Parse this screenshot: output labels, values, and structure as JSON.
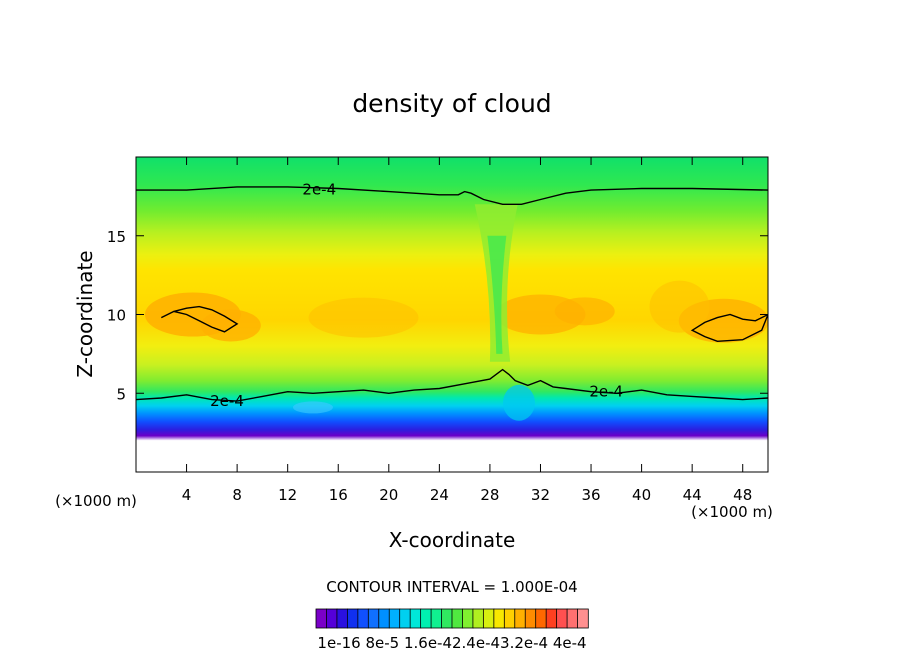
{
  "chart_data": {
    "type": "heatmap",
    "title": "density of cloud",
    "xlabel": "X-coordinate",
    "ylabel": "Z-coordinate",
    "x_unit": "(×1000 m)",
    "x_unit_right": "(×1000 m)",
    "xlim": [
      0,
      50
    ],
    "ylim": [
      0,
      20
    ],
    "x_ticks": [
      "4",
      "8",
      "12",
      "16",
      "20",
      "24",
      "28",
      "32",
      "36",
      "40",
      "44",
      "48"
    ],
    "x_tick_values": [
      4,
      8,
      12,
      16,
      20,
      24,
      28,
      32,
      36,
      40,
      44,
      48
    ],
    "y_ticks": [
      "5",
      "10",
      "15"
    ],
    "y_tick_values": [
      5,
      10,
      15
    ],
    "contour_label": "2e-4",
    "contour_interval_text": "CONTOUR INTERVAL = 1.000E-04",
    "colorbar": {
      "labels": [
        "1e-16",
        "8e-5",
        "1.6e-4",
        "2.4e-4",
        "3.2e-4",
        "4e-4"
      ],
      "label_text": "1e-16 8e-5 1.6e-42.4e-43.2e-4 4e-4",
      "colors": [
        "#7a00c8",
        "#5500d8",
        "#2a10e0",
        "#1030f0",
        "#1050ff",
        "#1070ff",
        "#0090ff",
        "#00b0ff",
        "#00d0f0",
        "#00e8d8",
        "#00f0b0",
        "#10f090",
        "#30e860",
        "#50e840",
        "#80f030",
        "#b0f020",
        "#d8f010",
        "#f8e800",
        "#ffd000",
        "#ffb000",
        "#ff8c00",
        "#ff6800",
        "#ff4020",
        "#ff5050",
        "#ff7070",
        "#ff9090"
      ]
    },
    "contours": [
      {
        "level": "2e-4",
        "points": [
          [
            0,
            17.9
          ],
          [
            4,
            17.9
          ],
          [
            8,
            18.1
          ],
          [
            12,
            18.1
          ],
          [
            16,
            18.0
          ],
          [
            20,
            17.8
          ],
          [
            22,
            17.7
          ],
          [
            24,
            17.6
          ],
          [
            25.5,
            17.6
          ],
          [
            26,
            17.8
          ],
          [
            26.5,
            17.7
          ],
          [
            27.5,
            17.3
          ],
          [
            29,
            17.0
          ],
          [
            30.5,
            17.0
          ],
          [
            32,
            17.3
          ],
          [
            34,
            17.7
          ],
          [
            36,
            17.9
          ],
          [
            40,
            18.0
          ],
          [
            44,
            18.0
          ],
          [
            50,
            17.9
          ]
        ]
      },
      {
        "level": "2e-4",
        "points": [
          [
            0,
            4.6
          ],
          [
            2,
            4.7
          ],
          [
            4,
            4.9
          ],
          [
            6,
            4.6
          ],
          [
            8,
            4.5
          ],
          [
            10,
            4.8
          ],
          [
            12,
            5.1
          ],
          [
            14,
            5.0
          ],
          [
            16,
            5.1
          ],
          [
            18,
            5.2
          ],
          [
            20,
            5.0
          ],
          [
            22,
            5.2
          ],
          [
            24,
            5.3
          ],
          [
            26,
            5.6
          ],
          [
            28,
            5.9
          ],
          [
            29,
            6.5
          ],
          [
            29.5,
            6.2
          ],
          [
            30,
            5.8
          ],
          [
            31,
            5.5
          ],
          [
            32,
            5.8
          ],
          [
            33,
            5.4
          ],
          [
            34,
            5.3
          ],
          [
            36,
            5.1
          ],
          [
            38,
            5.0
          ],
          [
            40,
            5.2
          ],
          [
            42,
            4.9
          ],
          [
            44,
            4.8
          ],
          [
            46,
            4.7
          ],
          [
            48,
            4.6
          ],
          [
            50,
            4.7
          ]
        ]
      },
      {
        "level": "3e-4",
        "points": [
          [
            2,
            9.8
          ],
          [
            3,
            10.2
          ],
          [
            4,
            10.0
          ],
          [
            5,
            9.6
          ],
          [
            6,
            9.2
          ],
          [
            7,
            8.9
          ],
          [
            8,
            9.4
          ],
          [
            7,
            9.9
          ],
          [
            6,
            10.3
          ],
          [
            5,
            10.5
          ],
          [
            4,
            10.4
          ],
          [
            3,
            10.2
          ]
        ]
      },
      {
        "level": "3e-4",
        "points": [
          [
            44,
            9.0
          ],
          [
            45,
            9.5
          ],
          [
            46,
            9.8
          ],
          [
            47,
            10.0
          ],
          [
            48,
            9.7
          ],
          [
            49,
            9.6
          ],
          [
            50,
            10.0
          ],
          [
            49.5,
            9.0
          ],
          [
            48,
            8.4
          ],
          [
            46,
            8.3
          ],
          [
            45,
            8.6
          ]
        ]
      }
    ]
  }
}
